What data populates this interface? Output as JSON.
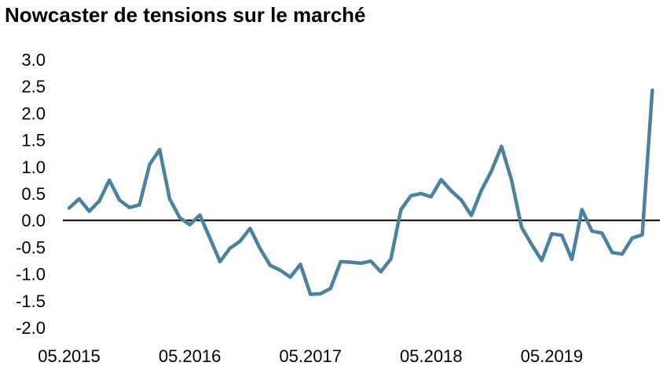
{
  "chart_data": {
    "type": "line",
    "title": "Nowcaster de tensions sur le marché",
    "xlabel": "",
    "ylabel": "",
    "ylim": [
      -2.0,
      3.0
    ],
    "yticks": [
      "3.0",
      "2.5",
      "2.0",
      "1.5",
      "1.0",
      "0.5",
      "0.0",
      "-0.5",
      "-1.0",
      "-1.5",
      "-2.0"
    ],
    "xticks": [
      "05.2015",
      "05.2016",
      "05.2017",
      "05.2018",
      "05.2019"
    ],
    "xtick_positions": [
      0,
      12,
      24,
      36,
      48
    ],
    "zero_line": true,
    "grid": false,
    "legend": "none",
    "line_color": "#4a819c",
    "series": [
      {
        "values": [
          0.23,
          0.4,
          0.17,
          0.36,
          0.75,
          0.38,
          0.24,
          0.29,
          1.04,
          1.32,
          0.4,
          0.05,
          -0.08,
          0.1,
          -0.33,
          -0.77,
          -0.52,
          -0.39,
          -0.15,
          -0.53,
          -0.84,
          -0.93,
          -1.06,
          -0.82,
          -1.38,
          -1.37,
          -1.27,
          -0.77,
          -0.78,
          -0.8,
          -0.76,
          -0.96,
          -0.72,
          0.2,
          0.46,
          0.5,
          0.44,
          0.76,
          0.55,
          0.38,
          0.09,
          0.56,
          0.92,
          1.38,
          0.75,
          -0.13,
          -0.45,
          -0.75,
          -0.25,
          -0.28,
          -0.73,
          0.2,
          -0.2,
          -0.24,
          -0.6,
          -0.63,
          -0.33,
          -0.27,
          2.43
        ]
      }
    ]
  }
}
